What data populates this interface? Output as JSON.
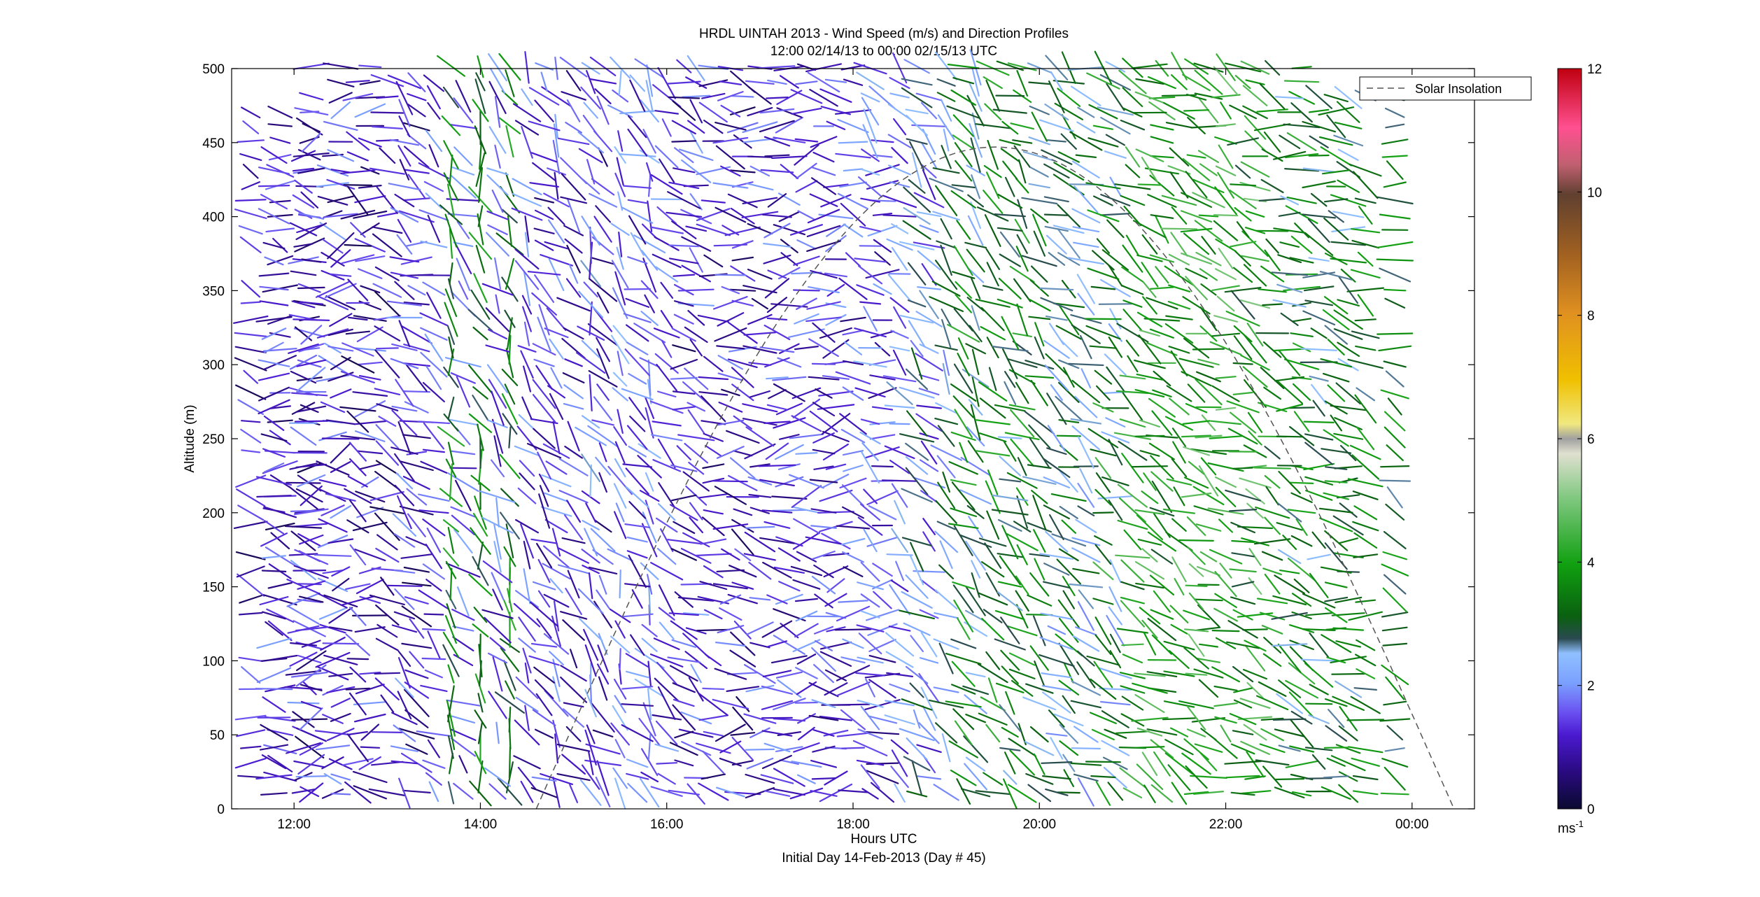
{
  "chart_data": {
    "type": "quiver",
    "title": "HRDL UINTAH 2013 - Wind Speed (m/s) and Direction Profiles",
    "subtitle": "12:00 02/14/13 to 00:00 02/15/13  UTC",
    "xlabel": "Hours UTC",
    "xlabel2": "Initial Day 14-Feb-2013 (Day # 45)",
    "ylabel": "Altitude (m)",
    "xlim_hours": [
      11.33,
      24.67
    ],
    "ylim": [
      0,
      500
    ],
    "x_ticks": [
      {
        "value": 12,
        "label": "12:00"
      },
      {
        "value": 14,
        "label": "14:00"
      },
      {
        "value": 16,
        "label": "16:00"
      },
      {
        "value": 18,
        "label": "18:00"
      },
      {
        "value": 20,
        "label": "20:00"
      },
      {
        "value": 22,
        "label": "22:00"
      },
      {
        "value": 24,
        "label": "00:00"
      }
    ],
    "y_ticks": [
      0,
      50,
      100,
      150,
      200,
      250,
      300,
      350,
      400,
      450,
      500
    ],
    "colorbar": {
      "min": 0,
      "max": 12,
      "ticks": [
        0,
        2,
        4,
        6,
        8,
        10,
        12
      ],
      "unit_label": "ms",
      "unit_exponent": "-1"
    },
    "legend": {
      "entries": [
        "Solar Insolation"
      ],
      "position": "top-right"
    },
    "solar_insolation": {
      "line_style": "dashed",
      "color": "#555555",
      "start_hour": 14.6,
      "end_hour": 24.45,
      "peak_hour": 19.5,
      "peak_altitude": 447
    },
    "vector_profiles": [
      {
        "time": 11.85,
        "alt": [
          10,
          470
        ],
        "speed": 1.0,
        "dir": 10
      },
      {
        "time": 12.1,
        "alt": [
          10,
          440
        ],
        "speed": 1.3,
        "dir": 5
      },
      {
        "time": 12.5,
        "alt": [
          10,
          500
        ],
        "speed": 1.2,
        "dir": -10
      },
      {
        "time": 13.0,
        "alt": [
          10,
          490
        ],
        "speed": 1.0,
        "dir": 20
      },
      {
        "time": 13.5,
        "alt": [
          10,
          490
        ],
        "speed": 1.5,
        "dir": 35
      },
      {
        "time": 14.0,
        "alt": [
          10,
          500
        ],
        "speed": 3.5,
        "dir": 70
      },
      {
        "time": 14.5,
        "alt": [
          10,
          500
        ],
        "speed": 1.5,
        "dir": 50
      },
      {
        "time": 15.0,
        "alt": [
          10,
          500
        ],
        "speed": 1.2,
        "dir": 40
      },
      {
        "time": 15.5,
        "alt": [
          10,
          500
        ],
        "speed": 1.8,
        "dir": 60
      },
      {
        "time": 16.0,
        "alt": [
          10,
          500
        ],
        "speed": 1.5,
        "dir": 30
      },
      {
        "time": 16.5,
        "alt": [
          10,
          500
        ],
        "speed": 1.1,
        "dir": 15
      },
      {
        "time": 17.0,
        "alt": [
          10,
          500
        ],
        "speed": 1.2,
        "dir": 5
      },
      {
        "time": 17.5,
        "alt": [
          10,
          500
        ],
        "speed": 1.4,
        "dir": -5
      },
      {
        "time": 18.0,
        "alt": [
          10,
          500
        ],
        "speed": 1.3,
        "dir": 10
      },
      {
        "time": 18.5,
        "alt": [
          10,
          500
        ],
        "speed": 1.8,
        "dir": 35
      },
      {
        "time": 19.0,
        "alt": [
          10,
          500
        ],
        "speed": 2.6,
        "dir": 45
      },
      {
        "time": 19.5,
        "alt": [
          10,
          500
        ],
        "speed": 3.6,
        "dir": 40
      },
      {
        "time": 20.0,
        "alt": [
          10,
          500
        ],
        "speed": 3.2,
        "dir": 35
      },
      {
        "time": 20.5,
        "alt": [
          10,
          500
        ],
        "speed": 2.6,
        "dir": 30
      },
      {
        "time": 21.0,
        "alt": [
          10,
          500
        ],
        "speed": 3.8,
        "dir": 30
      },
      {
        "time": 21.5,
        "alt": [
          10,
          500
        ],
        "speed": 4.0,
        "dir": 28
      },
      {
        "time": 22.0,
        "alt": [
          10,
          500
        ],
        "speed": 4.2,
        "dir": 25
      },
      {
        "time": 22.5,
        "alt": [
          10,
          500
        ],
        "speed": 3.6,
        "dir": 22
      },
      {
        "time": 23.0,
        "alt": [
          10,
          480
        ],
        "speed": 3.2,
        "dir": 20
      },
      {
        "time": 23.5,
        "alt": [
          10,
          480
        ],
        "speed": 3.4,
        "dir": 20
      }
    ]
  }
}
